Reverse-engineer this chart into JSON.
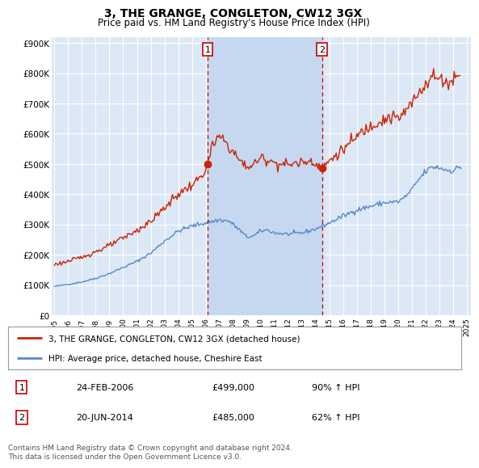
{
  "title": "3, THE GRANGE, CONGLETON, CW12 3GX",
  "subtitle": "Price paid vs. HM Land Registry's House Price Index (HPI)",
  "ylabel_ticks": [
    "£0",
    "£100K",
    "£200K",
    "£300K",
    "£400K",
    "£500K",
    "£600K",
    "£700K",
    "£800K",
    "£900K"
  ],
  "ytick_values": [
    0,
    100000,
    200000,
    300000,
    400000,
    500000,
    600000,
    700000,
    800000,
    900000
  ],
  "ylim": [
    0,
    920000
  ],
  "xlim_start": 1994.8,
  "xlim_end": 2025.3,
  "background_color": "#ffffff",
  "plot_bg_color": "#dce8f5",
  "grid_color": "#ffffff",
  "shade_color": "#c5d8f0",
  "transaction1_x": 2006.14,
  "transaction1_y": 499000,
  "transaction2_x": 2014.47,
  "transaction2_y": 485000,
  "vline_color": "#cc0000",
  "sale_line_color": "#cc2200",
  "hpi_line_color": "#5588cc",
  "legend_sale_label": "3, THE GRANGE, CONGLETON, CW12 3GX (detached house)",
  "legend_hpi_label": "HPI: Average price, detached house, Cheshire East",
  "note1_date": "24-FEB-2006",
  "note1_price": "£499,000",
  "note1_hpi": "90% ↑ HPI",
  "note2_date": "20-JUN-2014",
  "note2_price": "£485,000",
  "note2_hpi": "62% ↑ HPI",
  "footer": "Contains HM Land Registry data © Crown copyright and database right 2024.\nThis data is licensed under the Open Government Licence v3.0."
}
